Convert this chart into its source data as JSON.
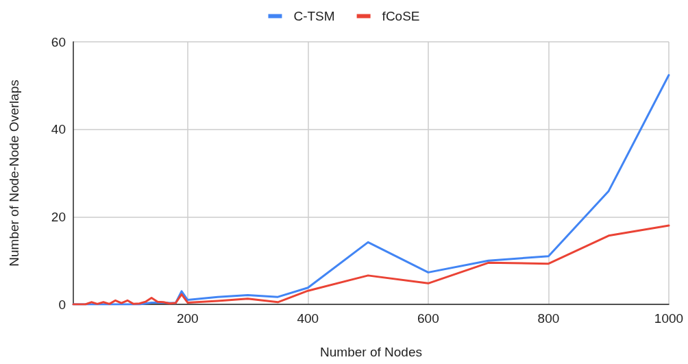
{
  "chart_data": {
    "type": "line",
    "xlabel": "Number of Nodes",
    "ylabel": "Number of Node-Node Overlaps",
    "x": [
      10,
      20,
      30,
      40,
      50,
      60,
      70,
      80,
      90,
      100,
      110,
      120,
      130,
      140,
      150,
      160,
      170,
      180,
      190,
      200,
      250,
      300,
      350,
      400,
      500,
      600,
      700,
      800,
      900,
      1000
    ],
    "series": [
      {
        "name": "C-TSM",
        "color": "#4285f4",
        "values": [
          0,
          0,
          0,
          0,
          0,
          0,
          0,
          0,
          0,
          0,
          0,
          0,
          0.2,
          0.4,
          0.4,
          0.4,
          0.3,
          0.3,
          3.0,
          1.0,
          1.7,
          2.1,
          1.7,
          3.8,
          14.2,
          7.3,
          10.0,
          11.0,
          25.9,
          52.4
        ]
      },
      {
        "name": "fCoSE",
        "color": "#ea4335",
        "values": [
          0,
          0,
          0,
          0.5,
          0.1,
          0.5,
          0.1,
          0.9,
          0.3,
          0.9,
          0.1,
          0.2,
          0.6,
          1.5,
          0.6,
          0.5,
          0.2,
          0.3,
          2.3,
          0.4,
          0.8,
          1.3,
          0.5,
          3.1,
          6.6,
          4.8,
          9.5,
          9.3,
          15.7,
          18.0
        ]
      }
    ],
    "xlim": [
      10,
      1000
    ],
    "xticks": [
      200,
      400,
      600,
      800,
      1000
    ],
    "ylim": [
      0,
      60
    ],
    "yticks": [
      0,
      20,
      40,
      60
    ],
    "grid": true,
    "legend": "top",
    "marker": "none",
    "line_style": "solid"
  }
}
